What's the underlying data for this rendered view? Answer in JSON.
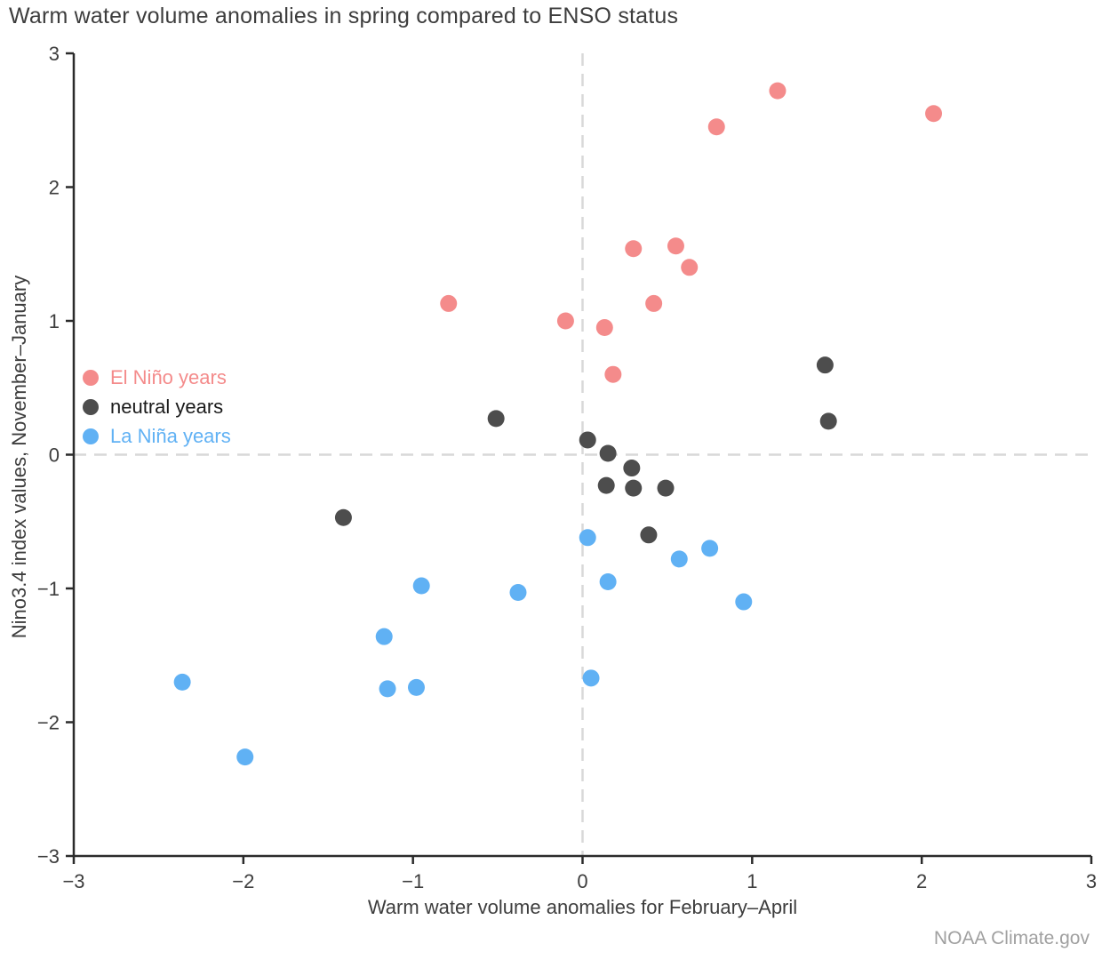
{
  "title": "Warm water volume anomalies in spring compared to ENSO status",
  "attribution": "NOAA Climate.gov",
  "chart_data": {
    "type": "scatter",
    "title": "Warm water volume anomalies in spring compared to ENSO status",
    "xlabel": "Warm water volume anomalies for February–April",
    "ylabel": "Nino3.4 index values, November–January",
    "xlim": [
      -3,
      3
    ],
    "ylim": [
      -3,
      3
    ],
    "xticks": [
      -3,
      -2,
      -1,
      0,
      1,
      2,
      3
    ],
    "yticks": [
      -3,
      -2,
      -1,
      0,
      1,
      2,
      3
    ],
    "grid": false,
    "reference_lines": {
      "x": 0,
      "y": 0,
      "style": "dashed",
      "color": "#d8d8d8"
    },
    "legend_position": "middle-left",
    "axis_color": "#2b2b2b",
    "tick_label_color": "#3d3d3d",
    "series": [
      {
        "name": "El Niño years",
        "color": "#f48b8b",
        "label_color": "#f48b8b",
        "points": [
          [
            1.15,
            2.72
          ],
          [
            2.07,
            2.55
          ],
          [
            0.79,
            2.45
          ],
          [
            0.55,
            1.56
          ],
          [
            0.3,
            1.54
          ],
          [
            0.63,
            1.4
          ],
          [
            -0.79,
            1.13
          ],
          [
            0.42,
            1.13
          ],
          [
            -0.1,
            1.0
          ],
          [
            0.13,
            0.95
          ],
          [
            0.18,
            0.6
          ]
        ]
      },
      {
        "name": "neutral years",
        "color": "#4d4d4d",
        "label_color": "#1a1a1a",
        "points": [
          [
            1.43,
            0.67
          ],
          [
            -0.51,
            0.27
          ],
          [
            1.45,
            0.25
          ],
          [
            0.03,
            0.11
          ],
          [
            0.15,
            0.01
          ],
          [
            0.29,
            -0.1
          ],
          [
            0.14,
            -0.23
          ],
          [
            0.3,
            -0.25
          ],
          [
            0.49,
            -0.25
          ],
          [
            -1.41,
            -0.47
          ],
          [
            0.39,
            -0.6
          ]
        ]
      },
      {
        "name": "La Niña years",
        "color": "#60b1f4",
        "label_color": "#60b1f4",
        "points": [
          [
            0.03,
            -0.62
          ],
          [
            0.75,
            -0.7
          ],
          [
            0.57,
            -0.78
          ],
          [
            0.15,
            -0.95
          ],
          [
            -0.95,
            -0.98
          ],
          [
            -0.38,
            -1.03
          ],
          [
            0.95,
            -1.1
          ],
          [
            -1.17,
            -1.36
          ],
          [
            0.05,
            -1.67
          ],
          [
            -2.36,
            -1.7
          ],
          [
            -1.15,
            -1.75
          ],
          [
            -0.98,
            -1.74
          ],
          [
            -1.99,
            -2.26
          ]
        ]
      }
    ]
  }
}
